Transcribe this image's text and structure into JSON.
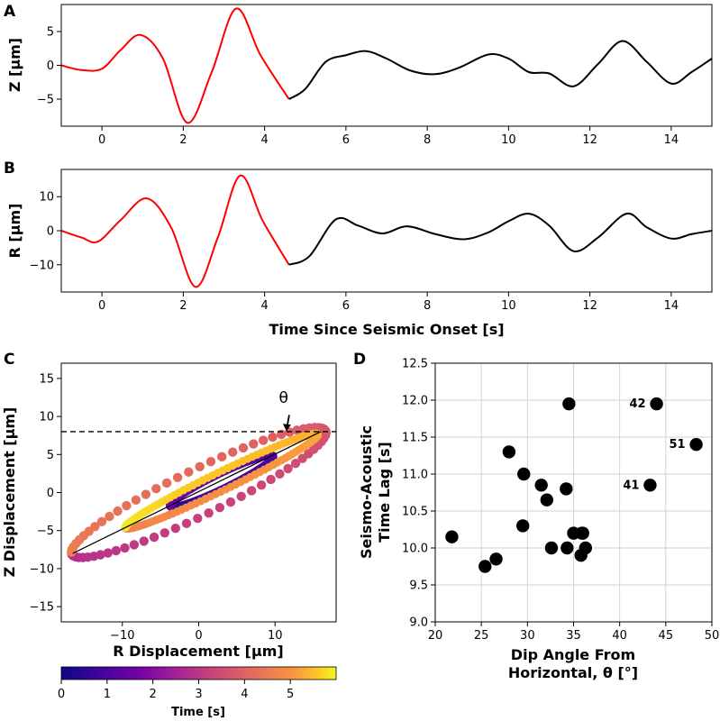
{
  "chart_data": [
    {
      "id": "A",
      "type": "line",
      "panel_label": "A",
      "ylabel": "Z [μm]",
      "xlabel": "",
      "xlim": [
        -1,
        15
      ],
      "ylim": [
        -9,
        9
      ],
      "xticks": [
        0,
        2,
        4,
        6,
        8,
        10,
        12,
        14
      ],
      "yticks": [
        -5,
        0,
        5
      ],
      "highlight_until": 4.7,
      "series": [
        {
          "name": "Z",
          "color_highlight": "#ff0000",
          "color": "#000000",
          "x": [
            -1,
            -0.5,
            0,
            0.45,
            0.95,
            1.5,
            2.1,
            2.7,
            3.3,
            3.9,
            4.6,
            5.0,
            5.5,
            6.0,
            6.5,
            7.0,
            7.6,
            8.2,
            8.8,
            9.5,
            10.0,
            10.5,
            11.0,
            11.6,
            12.2,
            12.8,
            13.4,
            14.0,
            14.5,
            15.0
          ],
          "y": [
            0,
            -0.7,
            -0.5,
            2.2,
            4.5,
            1.0,
            -8.5,
            -1.0,
            8.4,
            1.5,
            -5.0,
            -3.5,
            0.5,
            1.5,
            2.1,
            1.0,
            -0.8,
            -1.3,
            -0.3,
            1.6,
            1.0,
            -1.0,
            -1.2,
            -3.1,
            0.2,
            3.6,
            0.5,
            -2.7,
            -1.0,
            1.0
          ]
        }
      ]
    },
    {
      "id": "B",
      "type": "line",
      "panel_label": "B",
      "ylabel": "R [μm]",
      "xlabel": "Time Since Seismic Onset [s]",
      "xlim": [
        -1,
        15
      ],
      "ylim": [
        -18,
        18
      ],
      "xticks": [
        0,
        2,
        4,
        6,
        8,
        10,
        12,
        14
      ],
      "yticks": [
        -10,
        0,
        10
      ],
      "highlight_until": 4.7,
      "series": [
        {
          "name": "R",
          "color_highlight": "#ff0000",
          "color": "#000000",
          "x": [
            -1,
            -0.5,
            -0.1,
            0.45,
            1.1,
            1.7,
            2.3,
            2.85,
            3.4,
            3.95,
            4.6,
            5.1,
            5.75,
            6.3,
            6.9,
            7.5,
            8.2,
            8.9,
            9.5,
            10.0,
            10.5,
            11.0,
            11.6,
            12.2,
            12.9,
            13.4,
            14.0,
            14.5,
            15.0
          ],
          "y": [
            0,
            -2.0,
            -3.2,
            3.0,
            9.5,
            1.0,
            -16.5,
            -2.0,
            16.2,
            3.0,
            -10.0,
            -7.5,
            3.3,
            1.5,
            -0.8,
            1.3,
            -1.0,
            -2.5,
            -0.5,
            2.8,
            5.0,
            1.5,
            -6.0,
            -2.0,
            5.0,
            1.0,
            -2.3,
            -1.0,
            0.0
          ]
        }
      ]
    },
    {
      "id": "C",
      "type": "scatter",
      "panel_label": "C",
      "xlabel": "R Displacement [μm]",
      "ylabel": "Z Displacement [μm]",
      "xlim": [
        -18,
        18
      ],
      "ylim": [
        -17,
        17
      ],
      "xticks": [
        -10,
        0,
        10
      ],
      "yticks": [
        -15,
        -10,
        -5,
        0,
        5,
        10,
        15
      ],
      "dashed_line_y": 8,
      "principal_axis": [
        [
          -16.5,
          -8
        ],
        [
          16,
          8
        ]
      ],
      "angle_label": "θ",
      "colorbar": {
        "label": "Time [s]",
        "ticks": [
          0,
          1,
          2,
          3,
          4,
          5
        ],
        "range": [
          0,
          6
        ],
        "colormap": "plasma"
      },
      "loops": [
        {
          "name": "early",
          "t_range": [
            0.5,
            1.7
          ],
          "center": [
            3,
            1.5
          ],
          "semi_major": 7.5,
          "semi_minor": 1.0,
          "angle_deg": 26
        },
        {
          "name": "main",
          "t_range": [
            2.8,
            4.6
          ],
          "center": [
            0,
            0
          ],
          "semi_major": 18.5,
          "semi_minor": 3.0,
          "angle_deg": 26
        },
        {
          "name": "late",
          "t_range": [
            4.6,
            5.9
          ],
          "center": [
            3,
            1.5
          ],
          "semi_major": 14,
          "semi_minor": 1.2,
          "angle_deg": 26
        }
      ]
    },
    {
      "id": "D",
      "type": "scatter",
      "panel_label": "D",
      "xlabel": "Dip Angle From Horizontal, θ [°]",
      "xlabel_lines": [
        "Dip Angle From",
        "Horizontal, θ [°]"
      ],
      "ylabel": "Seismo-Acoustic Time Lag [s]",
      "ylabel_lines": [
        "Seismo-Acoustic",
        "Time Lag [s]"
      ],
      "xlim": [
        20,
        50
      ],
      "ylim": [
        9.0,
        12.5
      ],
      "xticks": [
        20,
        25,
        30,
        35,
        40,
        45,
        50
      ],
      "yticks": [
        9.0,
        9.5,
        10.0,
        10.5,
        11.0,
        11.5,
        12.0,
        12.5
      ],
      "x": [
        21.8,
        25.4,
        26.6,
        28.0,
        29.6,
        29.5,
        31.5,
        32.1,
        32.6,
        34.2,
        34.3,
        34.5,
        35.0,
        35.8,
        35.9,
        36.0,
        36.3,
        43.3,
        44.0,
        48.3
      ],
      "y": [
        10.15,
        9.75,
        9.85,
        11.3,
        11.0,
        10.3,
        10.85,
        10.65,
        10.0,
        10.8,
        10.0,
        11.95,
        10.2,
        9.9,
        10.2,
        10.2,
        10.0,
        10.85,
        11.95,
        11.4
      ],
      "annotations": [
        {
          "text": "42",
          "x": 44.0,
          "y": 11.95
        },
        {
          "text": "51",
          "x": 48.3,
          "y": 11.4
        },
        {
          "text": "41",
          "x": 43.3,
          "y": 10.85
        }
      ]
    }
  ]
}
